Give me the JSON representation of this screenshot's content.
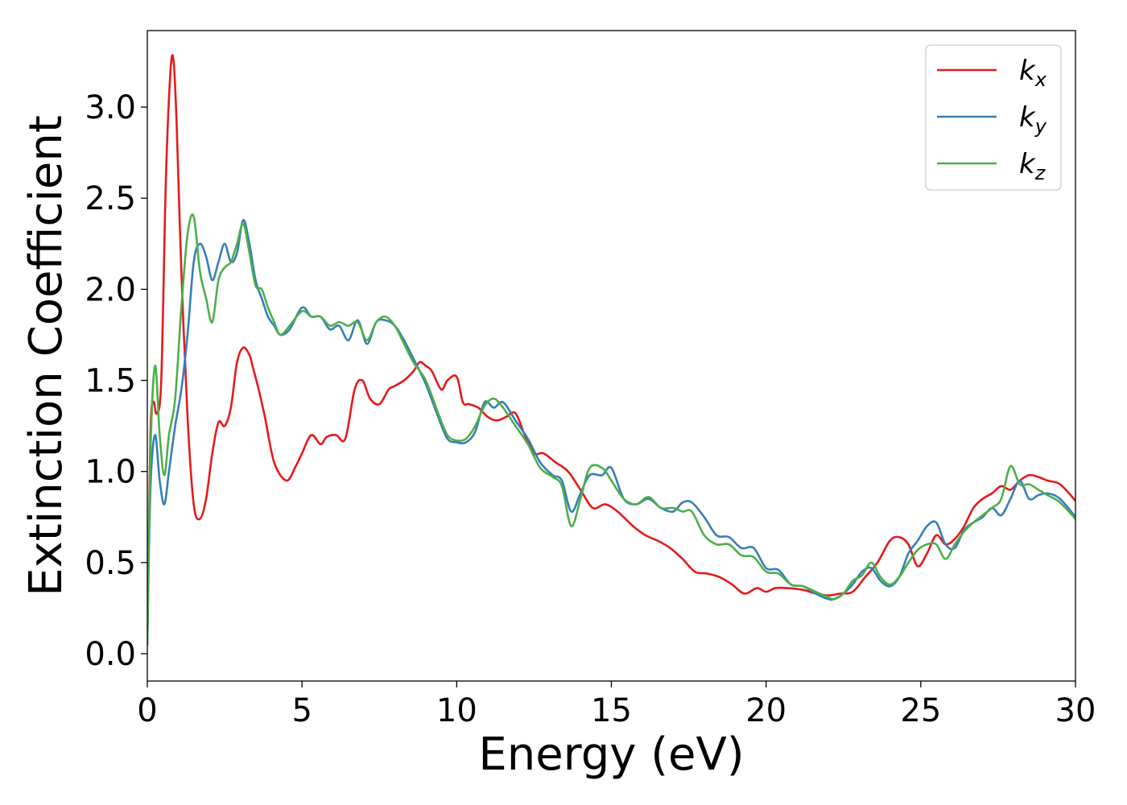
{
  "chart_data": {
    "type": "line",
    "title": "",
    "xlabel": "Energy (eV)",
    "ylabel": "Extinction Coefficient",
    "xlim": [
      0,
      30
    ],
    "ylim": [
      -0.15,
      3.42
    ],
    "xticks": [
      0,
      5,
      10,
      15,
      20,
      25,
      30
    ],
    "xtick_labels": [
      "0",
      "5",
      "10",
      "15",
      "20",
      "25",
      "30"
    ],
    "yticks": [
      0.0,
      0.5,
      1.0,
      1.5,
      2.0,
      2.5,
      3.0
    ],
    "ytick_labels": [
      "0.0",
      "0.5",
      "1.0",
      "1.5",
      "2.0",
      "2.5",
      "3.0"
    ],
    "grid": false,
    "legend_position": "top-right",
    "series": [
      {
        "name": "k",
        "subscript": "x",
        "color": "#e41a1c",
        "x": [
          0,
          0.1,
          0.2,
          0.3,
          0.45,
          0.6,
          0.75,
          0.85,
          0.95,
          1.1,
          1.3,
          1.5,
          1.7,
          1.9,
          2.1,
          2.3,
          2.5,
          2.7,
          2.9,
          3.1,
          3.3,
          3.4,
          3.6,
          3.8,
          4.1,
          4.5,
          4.8,
          5.0,
          5.3,
          5.6,
          5.8,
          6.1,
          6.4,
          6.7,
          6.95,
          7.2,
          7.5,
          7.8,
          8.0,
          8.3,
          8.6,
          8.8,
          9.0,
          9.2,
          9.5,
          9.7,
          10.0,
          10.2,
          10.4,
          10.7,
          11.0,
          11.3,
          11.6,
          11.9,
          12.2,
          12.5,
          12.8,
          13.2,
          13.6,
          14.0,
          14.4,
          14.8,
          15.2,
          15.7,
          16.1,
          16.5,
          16.9,
          17.3,
          17.7,
          18.1,
          18.5,
          18.9,
          19.3,
          19.7,
          20.0,
          20.3,
          20.7,
          21.2,
          21.6,
          22.0,
          22.4,
          22.8,
          23.2,
          23.6,
          24.0,
          24.3,
          24.6,
          24.9,
          25.2,
          25.5,
          25.8,
          26.1,
          26.4,
          26.7,
          27.0,
          27.3,
          27.6,
          27.9,
          28.2,
          28.5,
          28.8,
          29.1,
          29.5,
          30.0
        ],
        "values": [
          0.05,
          1.2,
          1.38,
          1.32,
          1.5,
          2.6,
          3.2,
          3.25,
          2.9,
          2.1,
          1.3,
          0.82,
          0.74,
          0.85,
          1.1,
          1.27,
          1.25,
          1.35,
          1.6,
          1.68,
          1.64,
          1.58,
          1.45,
          1.3,
          1.05,
          0.95,
          1.03,
          1.1,
          1.2,
          1.15,
          1.19,
          1.2,
          1.18,
          1.45,
          1.5,
          1.4,
          1.37,
          1.45,
          1.47,
          1.5,
          1.55,
          1.6,
          1.58,
          1.55,
          1.45,
          1.5,
          1.52,
          1.38,
          1.37,
          1.35,
          1.3,
          1.28,
          1.3,
          1.32,
          1.2,
          1.1,
          1.1,
          1.05,
          1.0,
          0.9,
          0.8,
          0.82,
          0.78,
          0.7,
          0.65,
          0.62,
          0.58,
          0.52,
          0.45,
          0.44,
          0.42,
          0.38,
          0.33,
          0.36,
          0.34,
          0.36,
          0.36,
          0.35,
          0.33,
          0.32,
          0.33,
          0.34,
          0.42,
          0.5,
          0.62,
          0.64,
          0.6,
          0.48,
          0.55,
          0.65,
          0.6,
          0.63,
          0.7,
          0.8,
          0.85,
          0.88,
          0.92,
          0.9,
          0.95,
          0.98,
          0.97,
          0.95,
          0.93,
          0.84
        ]
      },
      {
        "name": "k",
        "subscript": "y",
        "color": "#377eb8",
        "x": [
          0,
          0.1,
          0.25,
          0.4,
          0.55,
          0.7,
          0.9,
          1.1,
          1.3,
          1.5,
          1.7,
          1.9,
          2.1,
          2.3,
          2.5,
          2.7,
          2.9,
          3.1,
          3.3,
          3.5,
          3.7,
          3.9,
          4.1,
          4.3,
          4.6,
          5.0,
          5.3,
          5.6,
          5.9,
          6.2,
          6.5,
          6.8,
          7.1,
          7.4,
          7.7,
          8.0,
          8.3,
          8.6,
          9.0,
          9.4,
          9.7,
          10.0,
          10.3,
          10.6,
          10.9,
          11.2,
          11.5,
          11.9,
          12.3,
          12.7,
          13.1,
          13.4,
          13.7,
          14.0,
          14.3,
          14.7,
          15.0,
          15.4,
          15.8,
          16.2,
          16.6,
          17.0,
          17.3,
          17.6,
          18.0,
          18.4,
          18.8,
          19.2,
          19.6,
          20.0,
          20.4,
          20.8,
          21.2,
          21.6,
          22.0,
          22.2,
          22.5,
          22.8,
          23.1,
          23.4,
          23.7,
          24.0,
          24.3,
          24.6,
          24.9,
          25.2,
          25.5,
          25.8,
          26.1,
          26.4,
          26.7,
          27.0,
          27.3,
          27.6,
          27.9,
          28.2,
          28.5,
          28.8,
          29.1,
          29.5,
          30.0
        ],
        "values": [
          0.05,
          0.9,
          1.2,
          0.95,
          0.82,
          1.0,
          1.25,
          1.45,
          1.75,
          2.15,
          2.25,
          2.18,
          2.05,
          2.15,
          2.25,
          2.15,
          2.2,
          2.38,
          2.25,
          2.05,
          1.95,
          1.85,
          1.8,
          1.75,
          1.78,
          1.9,
          1.85,
          1.85,
          1.78,
          1.8,
          1.72,
          1.83,
          1.7,
          1.82,
          1.83,
          1.8,
          1.72,
          1.62,
          1.48,
          1.3,
          1.18,
          1.16,
          1.16,
          1.22,
          1.38,
          1.35,
          1.38,
          1.28,
          1.18,
          1.05,
          0.98,
          0.95,
          0.78,
          0.88,
          0.98,
          0.98,
          1.02,
          0.85,
          0.82,
          0.85,
          0.8,
          0.78,
          0.83,
          0.83,
          0.75,
          0.65,
          0.64,
          0.58,
          0.58,
          0.47,
          0.46,
          0.38,
          0.37,
          0.33,
          0.3,
          0.3,
          0.33,
          0.38,
          0.45,
          0.47,
          0.4,
          0.37,
          0.42,
          0.55,
          0.62,
          0.7,
          0.72,
          0.6,
          0.58,
          0.68,
          0.72,
          0.75,
          0.8,
          0.76,
          0.85,
          0.95,
          0.85,
          0.87,
          0.88,
          0.85,
          0.75
        ]
      },
      {
        "name": "k",
        "subscript": "z",
        "color": "#4daf4a",
        "x": [
          0,
          0.1,
          0.25,
          0.4,
          0.55,
          0.7,
          0.9,
          1.1,
          1.3,
          1.5,
          1.7,
          1.9,
          2.1,
          2.3,
          2.5,
          2.7,
          2.9,
          3.1,
          3.3,
          3.5,
          3.7,
          3.9,
          4.1,
          4.3,
          4.6,
          5.0,
          5.3,
          5.6,
          5.9,
          6.2,
          6.5,
          6.8,
          7.1,
          7.4,
          7.7,
          8.0,
          8.3,
          8.6,
          9.0,
          9.4,
          9.7,
          10.0,
          10.3,
          10.6,
          10.9,
          11.2,
          11.5,
          11.9,
          12.3,
          12.7,
          13.1,
          13.4,
          13.7,
          14.0,
          14.3,
          14.7,
          15.0,
          15.4,
          15.8,
          16.2,
          16.6,
          17.0,
          17.3,
          17.6,
          18.0,
          18.4,
          18.8,
          19.2,
          19.6,
          20.0,
          20.4,
          20.8,
          21.2,
          21.6,
          22.0,
          22.2,
          22.5,
          22.8,
          23.1,
          23.4,
          23.7,
          24.0,
          24.3,
          24.6,
          24.9,
          25.2,
          25.5,
          25.8,
          26.1,
          26.4,
          26.7,
          27.0,
          27.3,
          27.6,
          27.9,
          28.2,
          28.5,
          28.8,
          29.1,
          29.5,
          30.0
        ],
        "values": [
          0.05,
          1.1,
          1.58,
          1.2,
          0.98,
          1.2,
          1.4,
          1.9,
          2.3,
          2.4,
          2.1,
          1.95,
          1.82,
          2.05,
          2.12,
          2.15,
          2.25,
          2.36,
          2.2,
          2.02,
          2.0,
          1.9,
          1.82,
          1.75,
          1.8,
          1.88,
          1.85,
          1.85,
          1.8,
          1.82,
          1.8,
          1.82,
          1.72,
          1.82,
          1.85,
          1.8,
          1.7,
          1.6,
          1.5,
          1.32,
          1.2,
          1.17,
          1.18,
          1.25,
          1.36,
          1.4,
          1.35,
          1.25,
          1.15,
          1.02,
          0.97,
          0.92,
          0.7,
          0.85,
          1.02,
          1.02,
          0.95,
          0.85,
          0.82,
          0.86,
          0.8,
          0.8,
          0.78,
          0.78,
          0.65,
          0.6,
          0.6,
          0.54,
          0.53,
          0.45,
          0.44,
          0.38,
          0.37,
          0.34,
          0.31,
          0.3,
          0.33,
          0.4,
          0.43,
          0.5,
          0.42,
          0.38,
          0.42,
          0.5,
          0.57,
          0.6,
          0.6,
          0.52,
          0.6,
          0.67,
          0.72,
          0.76,
          0.8,
          0.85,
          1.03,
          0.93,
          0.93,
          0.9,
          0.87,
          0.83,
          0.74
        ]
      }
    ]
  }
}
